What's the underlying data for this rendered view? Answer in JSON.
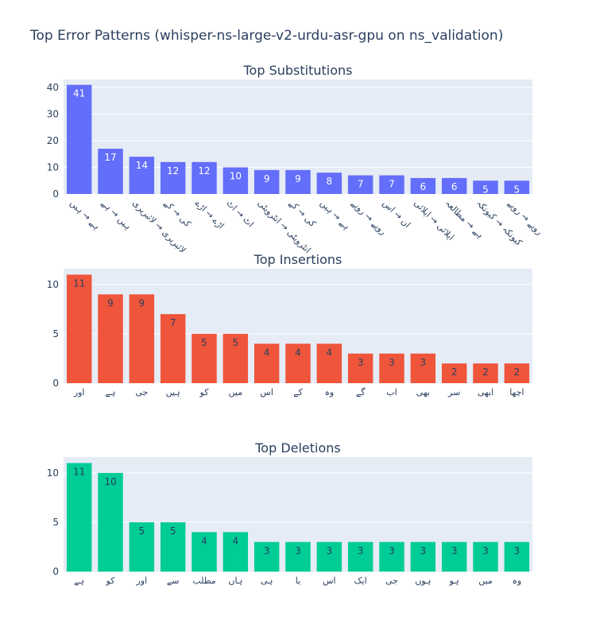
{
  "title": "Top Error Patterns (whisper-ns-large-v2-urdu-asr-gpu on ns_validation)",
  "chart_data": [
    {
      "type": "bar",
      "title": "Top Substitutions",
      "color": "#636efa",
      "label_color": "#ffffff",
      "ylim": [
        0,
        43
      ],
      "yticks": [
        0,
        10,
        20,
        30,
        40
      ],
      "grid": true,
      "categories": [
        "ہے → ہیں",
        "ہیں → ہے",
        "لائبریری → لائبریری",
        "کی → کے",
        "اڑے → اڑے",
        "اٹ → اٹ",
        "انٹرویٹی → انٹرویٹی",
        "کی → کے",
        "ہے → ہیں",
        "روپے → روپے",
        "ان → اس",
        "اپلائی → اپلائی",
        "ہے → مطالعہ",
        "کیونکہ → کیونکہ",
        "روپے → روپے"
      ],
      "values": [
        41,
        17,
        14,
        12,
        12,
        10,
        9,
        9,
        8,
        7,
        7,
        6,
        6,
        5,
        5
      ]
    },
    {
      "type": "bar",
      "title": "Top Insertions",
      "color": "#ef553b",
      "label_color": "#2a3f5f",
      "ylim": [
        0,
        11.6
      ],
      "yticks": [
        0,
        5,
        10
      ],
      "grid": true,
      "categories": [
        "اور",
        "ہے",
        "جی",
        "ہیں",
        "کو",
        "میں",
        "اس",
        "کے",
        "وہ",
        "گے",
        "اب",
        "بھی",
        "سر",
        "ابھی",
        "اچھا"
      ],
      "values": [
        11,
        9,
        9,
        7,
        5,
        5,
        4,
        4,
        4,
        3,
        3,
        3,
        2,
        2,
        2
      ]
    },
    {
      "type": "bar",
      "title": "Top Deletions",
      "color": "#00cc96",
      "label_color": "#2a3f5f",
      "ylim": [
        0,
        11.6
      ],
      "yticks": [
        0,
        5,
        10
      ],
      "grid": true,
      "categories": [
        "ہے",
        "کو",
        "اور",
        "سے",
        "مطلب",
        "ہاں",
        "ہی",
        "یا",
        "اس",
        "ایک",
        "جی",
        "ہوں",
        "ہو",
        "میں",
        "وہ"
      ],
      "values": [
        11,
        10,
        5,
        5,
        4,
        4,
        3,
        3,
        3,
        3,
        3,
        3,
        3,
        3,
        3
      ]
    }
  ]
}
